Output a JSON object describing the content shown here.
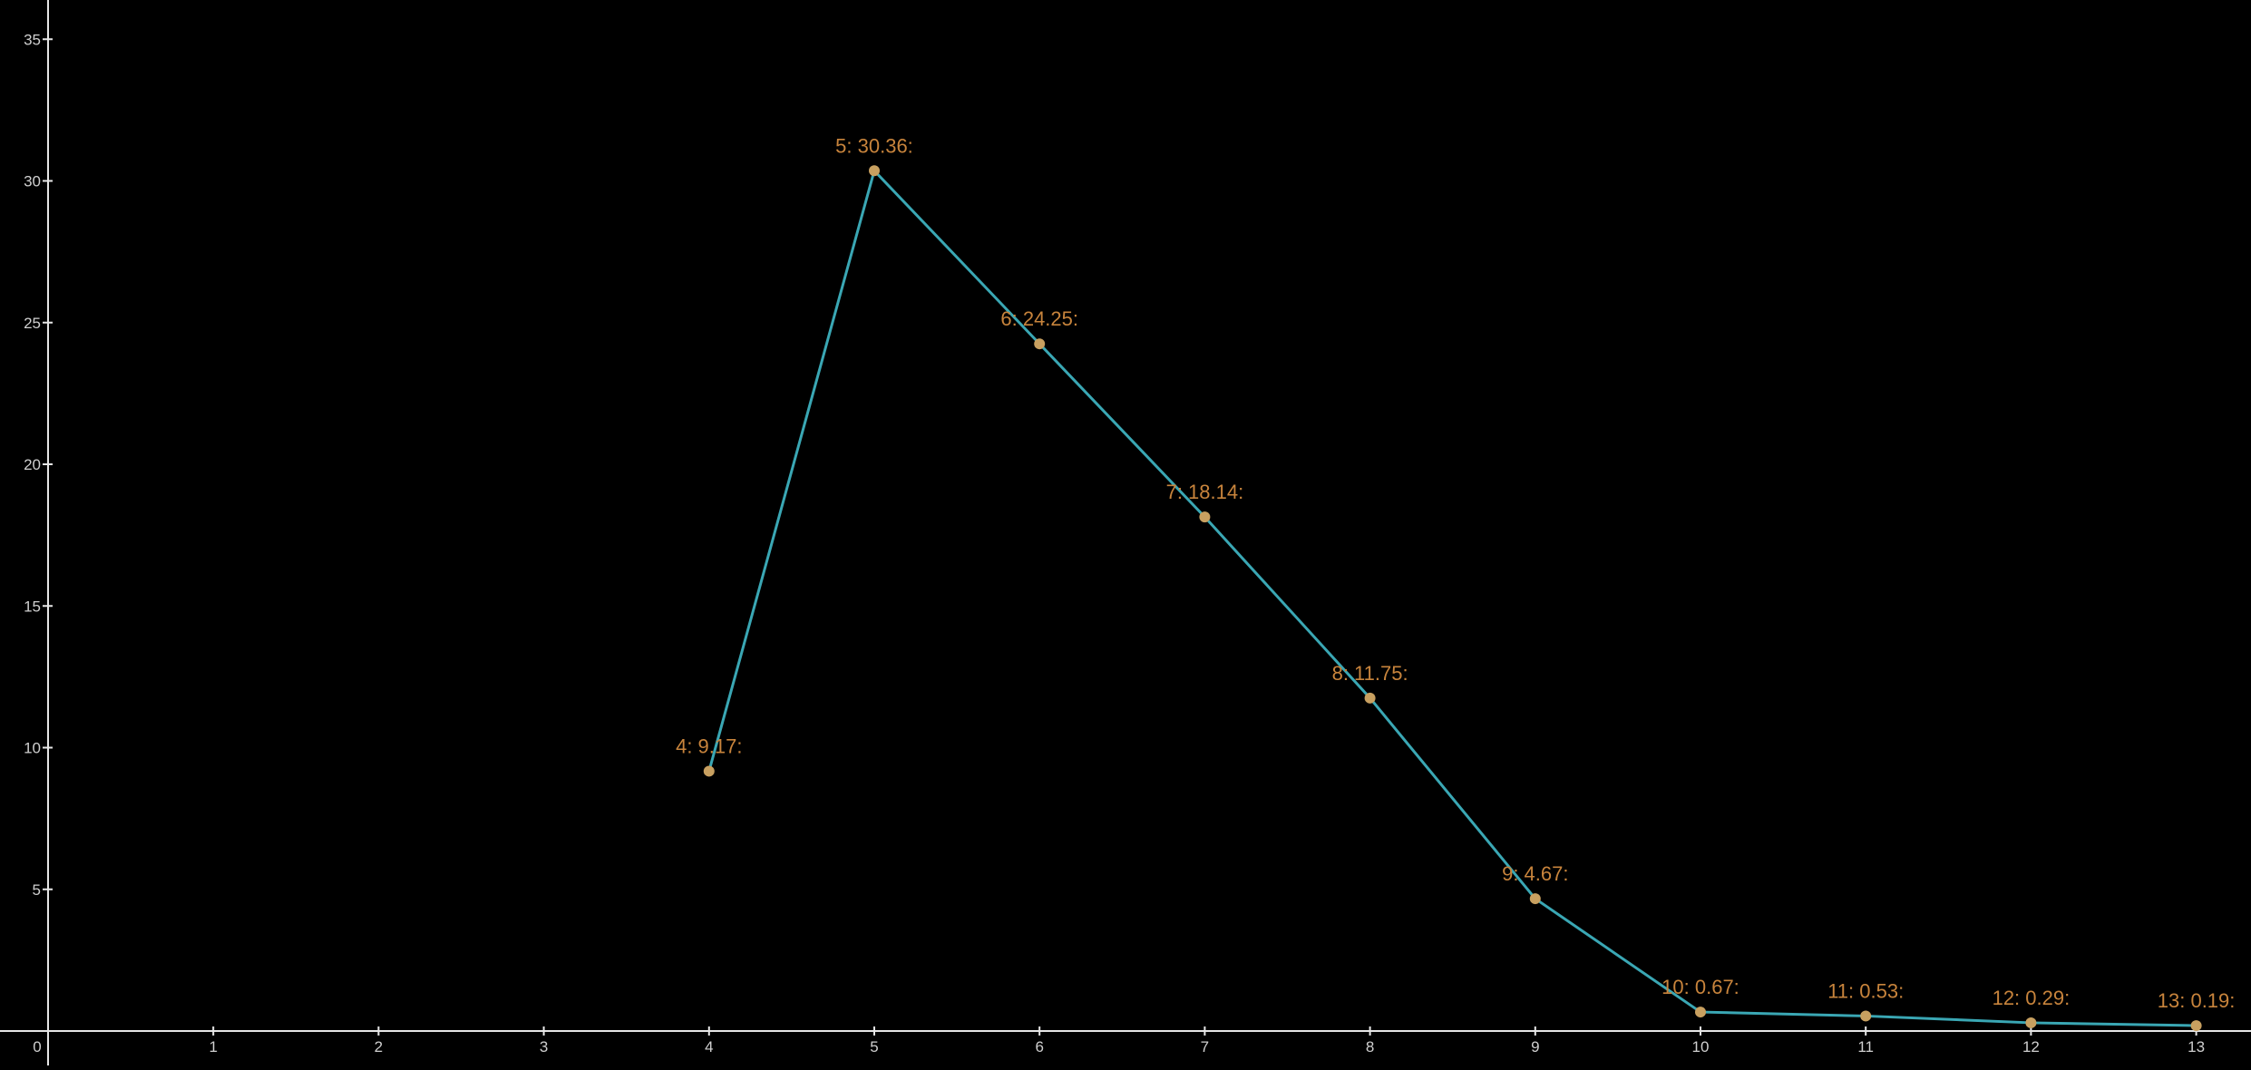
{
  "chart_data": {
    "type": "line",
    "title": "",
    "xlabel": "",
    "ylabel": "",
    "xlim": [
      0,
      13
    ],
    "ylim": [
      0,
      35
    ],
    "x_ticks": [
      {
        "value": 0,
        "label": "0"
      },
      {
        "value": 1,
        "label": "1"
      },
      {
        "value": 2,
        "label": "2"
      },
      {
        "value": 3,
        "label": "3"
      },
      {
        "value": 4,
        "label": "4"
      },
      {
        "value": 5,
        "label": "5"
      },
      {
        "value": 6,
        "label": "6"
      },
      {
        "value": 7,
        "label": "7"
      },
      {
        "value": 8,
        "label": "8"
      },
      {
        "value": 9,
        "label": "9"
      },
      {
        "value": 10,
        "label": "10"
      },
      {
        "value": 11,
        "label": "11"
      },
      {
        "value": 12,
        "label": "12"
      },
      {
        "value": 13,
        "label": "13"
      }
    ],
    "y_ticks": [
      {
        "value": 5,
        "label": "5"
      },
      {
        "value": 10,
        "label": "10"
      },
      {
        "value": 15,
        "label": "15"
      },
      {
        "value": 20,
        "label": "20"
      },
      {
        "value": 25,
        "label": "25"
      },
      {
        "value": 30,
        "label": "30"
      },
      {
        "value": 35,
        "label": "35"
      }
    ],
    "grid": false,
    "series": [
      {
        "x": [
          4,
          5,
          6,
          7,
          8,
          9,
          10,
          11,
          12,
          13
        ],
        "values": [
          9.17,
          30.36,
          24.25,
          18.14,
          11.75,
          4.67,
          0.67,
          0.53,
          0.29,
          0.19
        ],
        "labels": [
          "4: 9.17:",
          "5: 30.36:",
          "6: 24.25:",
          "7: 18.14:",
          "8: 11.75:",
          "9: 4.67:",
          "10: 0.67:",
          "11: 0.53:",
          "12: 0.29:",
          "13: 0.19:"
        ]
      }
    ],
    "colors": {
      "background": "#000000",
      "axis": "#e6e6e6",
      "tick_label": "#cfcfcf",
      "line": "#3aa7b4",
      "marker": "#c8a060",
      "data_label": "#c8843c"
    }
  }
}
